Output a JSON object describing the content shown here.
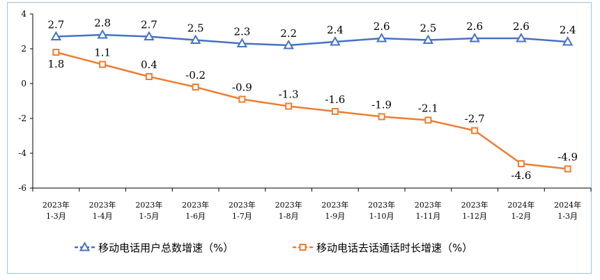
{
  "chart_data": {
    "type": "line",
    "title": "",
    "xlabel": "",
    "ylabel": "",
    "ylim": [
      -6,
      4
    ],
    "yticks": [
      "4",
      "2",
      "0",
      "-2",
      "-4",
      "-6"
    ],
    "categories": [
      [
        "2023年",
        "1-3月"
      ],
      [
        "2023年",
        "1-4月"
      ],
      [
        "2023年",
        "1-5月"
      ],
      [
        "2023年",
        "1-6月"
      ],
      [
        "2023年",
        "1-7月"
      ],
      [
        "2023年",
        "1-8月"
      ],
      [
        "2023年",
        "1-9月"
      ],
      [
        "2023年",
        "1-10月"
      ],
      [
        "2023年",
        "1-11月"
      ],
      [
        "2023年",
        "1-12月"
      ],
      [
        "2024年",
        "1-2月"
      ],
      [
        "2024年",
        "1-3月"
      ]
    ],
    "series": [
      {
        "name": "移动电话用户总数增速（%）",
        "color": "#4472c4",
        "marker": "triangle",
        "label_position": "above",
        "values": [
          2.7,
          2.8,
          2.7,
          2.5,
          2.3,
          2.2,
          2.4,
          2.6,
          2.5,
          2.6,
          2.6,
          2.4
        ],
        "labels": [
          "2.7",
          "2.8",
          "2.7",
          "2.5",
          "2.3",
          "2.2",
          "2.4",
          "2.6",
          "2.5",
          "2.6",
          "2.6",
          "2.4"
        ]
      },
      {
        "name": "移动电话去话通话时长增速（%）",
        "color": "#ed7d31",
        "marker": "square",
        "label_position": "mixed",
        "values": [
          1.8,
          1.1,
          0.4,
          -0.2,
          -0.9,
          -1.3,
          -1.6,
          -1.9,
          -2.1,
          -2.7,
          -4.6,
          -4.9
        ],
        "labels": [
          "1.8",
          "1.1",
          "0.4",
          "-0.2",
          "-0.9",
          "-1.3",
          "-1.6",
          "-1.9",
          "-2.1",
          "-2.7",
          "-4.6",
          "-4.9"
        ]
      }
    ],
    "legend_position": "bottom"
  }
}
